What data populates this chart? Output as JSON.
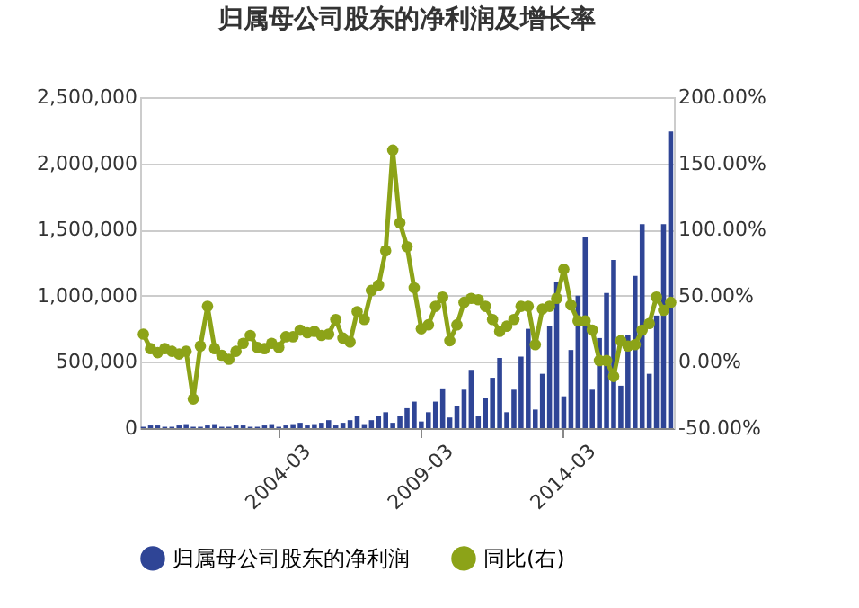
{
  "chart_data": {
    "type": "bar",
    "title": "归属母公司股东的净利润及增长率",
    "categories": [
      null,
      null,
      null,
      null,
      null,
      null,
      null,
      null,
      null,
      null,
      null,
      null,
      null,
      null,
      null,
      null,
      null,
      null,
      null,
      "2004-03",
      null,
      null,
      null,
      null,
      null,
      null,
      null,
      null,
      null,
      null,
      null,
      null,
      null,
      null,
      null,
      null,
      null,
      null,
      null,
      "2009-03",
      null,
      null,
      null,
      null,
      null,
      null,
      null,
      null,
      null,
      null,
      null,
      null,
      null,
      null,
      null,
      null,
      null,
      null,
      null,
      "2014-03",
      null,
      null,
      null,
      null,
      null,
      null,
      null,
      null,
      null,
      null,
      null,
      null,
      null,
      null,
      null
    ],
    "series": [
      {
        "name": "归属母公司股东的净利润",
        "color": "#2f4596",
        "values": [
          10000,
          20000,
          20000,
          10000,
          10000,
          20000,
          30000,
          10000,
          10000,
          20000,
          30000,
          10000,
          10000,
          20000,
          20000,
          10000,
          10000,
          20000,
          30000,
          10000,
          20000,
          30000,
          40000,
          20000,
          30000,
          40000,
          60000,
          20000,
          40000,
          60000,
          90000,
          30000,
          60000,
          90000,
          120000,
          40000,
          90000,
          150000,
          200000,
          50000,
          120000,
          200000,
          300000,
          80000,
          170000,
          290000,
          440000,
          90000,
          230000,
          380000,
          530000,
          120000,
          290000,
          540000,
          750000,
          140000,
          410000,
          770000,
          1100000,
          240000,
          590000,
          1000000,
          1440000,
          290000,
          680000,
          1020000,
          1270000,
          320000,
          700000,
          1150000,
          1540000,
          410000,
          850000,
          1540000,
          2240000
        ]
      },
      {
        "name": "同比(右)",
        "type": "line",
        "axis": "y2",
        "color": "#8ca318",
        "values": [
          21,
          10,
          7,
          10,
          8,
          6,
          8,
          -28,
          12,
          42,
          10,
          5,
          2,
          8,
          14,
          20,
          11,
          10,
          14,
          11,
          19,
          19,
          24,
          22,
          23,
          20,
          21,
          32,
          18,
          15,
          38,
          32,
          54,
          58,
          84,
          160,
          105,
          87,
          56,
          25,
          28,
          42,
          49,
          16,
          28,
          45,
          48,
          47,
          42,
          32,
          23,
          27,
          32,
          42,
          42,
          13,
          40,
          42,
          48,
          70,
          43,
          31,
          31,
          24,
          1,
          1,
          -11,
          16,
          12,
          13,
          24,
          29,
          49,
          39,
          45
        ]
      }
    ],
    "ylim": [
      0,
      2500000
    ],
    "yticks": [
      {
        "value": 0,
        "label": "0"
      },
      {
        "value": 500000,
        "label": "500,000"
      },
      {
        "value": 1000000,
        "label": "1,000,000"
      },
      {
        "value": 1500000,
        "label": "1,500,000"
      },
      {
        "value": 2000000,
        "label": "2,000,000"
      },
      {
        "value": 2500000,
        "label": "2,500,000"
      }
    ],
    "y2lim": [
      -50,
      200
    ],
    "y2ticks": [
      {
        "value": -50,
        "label": "-50.00%"
      },
      {
        "value": 0,
        "label": "0.00%"
      },
      {
        "value": 50,
        "label": "50.00%"
      },
      {
        "value": 100,
        "label": "100.00%"
      },
      {
        "value": 150,
        "label": "150.00%"
      },
      {
        "value": 200,
        "label": "200.00%"
      }
    ],
    "grid": "y",
    "legend": "bottom",
    "marker": "circle",
    "line_style": "solid"
  }
}
